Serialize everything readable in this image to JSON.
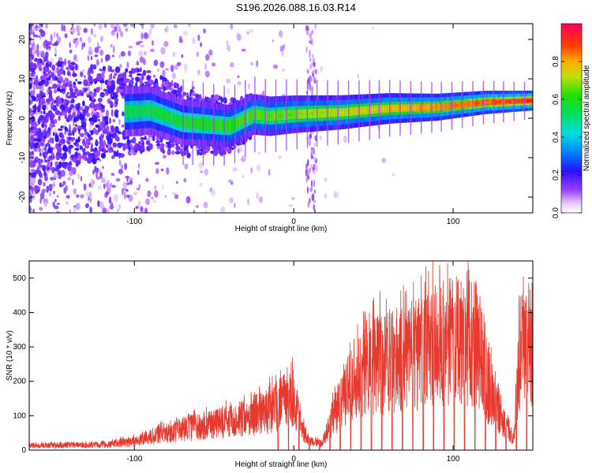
{
  "title": "S196.2026.088.16.03.R14",
  "chart_data": [
    {
      "type": "heatmap",
      "xlabel": "Height of straight line (km)",
      "ylabel": "Frequency (Hz)",
      "xlim": [
        -166,
        150
      ],
      "ylim": [
        -24,
        24
      ],
      "xticks": [
        -100,
        0,
        100
      ],
      "yticks": [
        -20,
        -10,
        0,
        10,
        20
      ],
      "colorbar": {
        "label": "Normalized spectral amplitude",
        "range": [
          0,
          1
        ],
        "ticks": [
          0.0,
          0.2,
          0.4,
          0.6,
          0.8
        ]
      },
      "ridge": [
        {
          "x": -166,
          "f": 0.0
        },
        {
          "x": -90,
          "f": 2.0
        },
        {
          "x": -70,
          "f": -1.0
        },
        {
          "x": -40,
          "f": -2.0
        },
        {
          "x": -25,
          "f": 1.0
        },
        {
          "x": -15,
          "f": 0.5
        },
        {
          "x": 0,
          "f": 1.0
        },
        {
          "x": 30,
          "f": 1.5
        },
        {
          "x": 60,
          "f": 2.5
        },
        {
          "x": 90,
          "f": 2.8
        },
        {
          "x": 120,
          "f": 4.0
        },
        {
          "x": 150,
          "f": 4.5
        }
      ]
    },
    {
      "type": "line",
      "xlabel": "Height of straight line (km)",
      "ylabel": "SNR (10 * v/v)",
      "xlim": [
        -166,
        150
      ],
      "ylim": [
        0,
        550
      ],
      "xticks": [
        -100,
        0,
        100
      ],
      "yticks": [
        0,
        100,
        200,
        300,
        400,
        500
      ],
      "color": "#e8392f",
      "envelope": [
        {
          "x": -166,
          "y": 20
        },
        {
          "x": -120,
          "y": 25
        },
        {
          "x": -100,
          "y": 40
        },
        {
          "x": -80,
          "y": 80
        },
        {
          "x": -60,
          "y": 110
        },
        {
          "x": -40,
          "y": 130
        },
        {
          "x": -20,
          "y": 170
        },
        {
          "x": -10,
          "y": 210
        },
        {
          "x": 0,
          "y": 250
        },
        {
          "x": 5,
          "y": 100
        },
        {
          "x": 10,
          "y": 40
        },
        {
          "x": 18,
          "y": 30
        },
        {
          "x": 25,
          "y": 160
        },
        {
          "x": 35,
          "y": 280
        },
        {
          "x": 45,
          "y": 380
        },
        {
          "x": 60,
          "y": 420
        },
        {
          "x": 75,
          "y": 440
        },
        {
          "x": 85,
          "y": 480
        },
        {
          "x": 95,
          "y": 500
        },
        {
          "x": 105,
          "y": 510
        },
        {
          "x": 115,
          "y": 500
        },
        {
          "x": 122,
          "y": 300
        },
        {
          "x": 130,
          "y": 150
        },
        {
          "x": 138,
          "y": 40
        },
        {
          "x": 142,
          "y": 480
        },
        {
          "x": 150,
          "y": 490
        }
      ],
      "dropout_start": -10,
      "dropout_spacing": 6.5
    }
  ]
}
